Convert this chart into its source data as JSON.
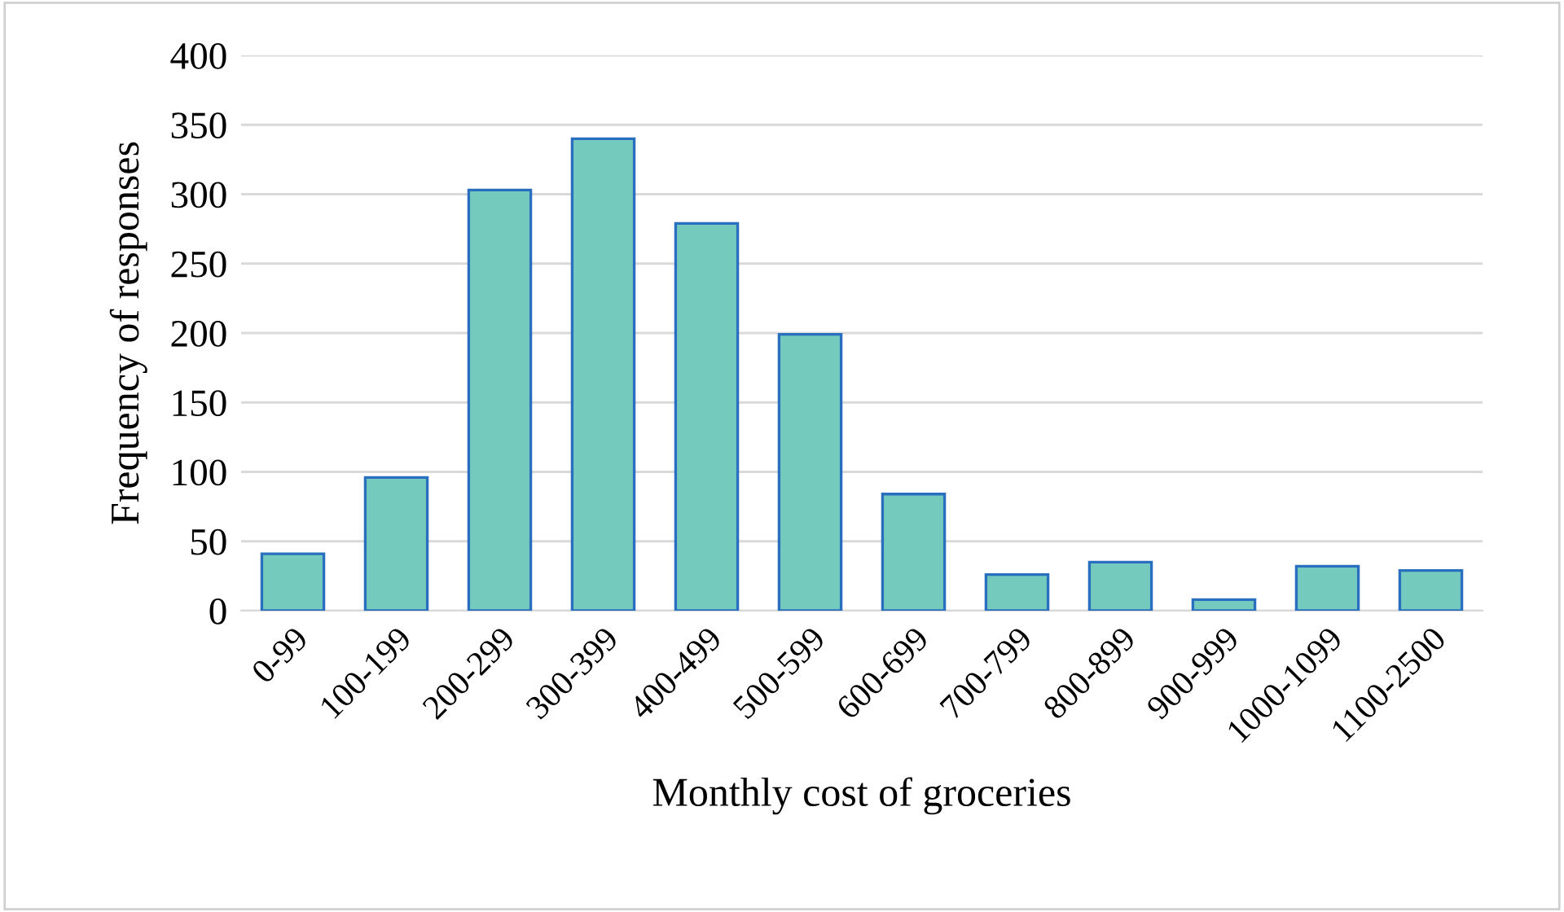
{
  "chart_data": {
    "type": "bar",
    "xlabel": "Monthly cost of groceries",
    "ylabel": "Frequency of responses",
    "categories": [
      "0-99",
      "100-199",
      "200-299",
      "300-399",
      "400-499",
      "500-599",
      "600-699",
      "700-799",
      "800-899",
      "900-999",
      "1000-1099",
      "1100-2500"
    ],
    "values": [
      41,
      96,
      303,
      340,
      279,
      199,
      84,
      26,
      35,
      8,
      32,
      29
    ],
    "color": "#74cbbd",
    "ylim": [
      0,
      400
    ],
    "yticks": [
      0,
      50,
      100,
      150,
      200,
      250,
      300,
      350,
      400
    ],
    "grid": "y"
  }
}
